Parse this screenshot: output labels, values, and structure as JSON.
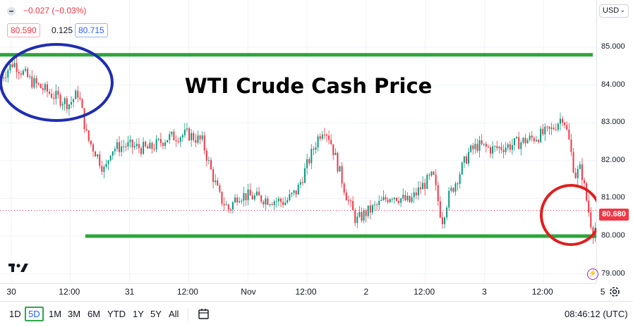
{
  "header": {
    "change": "−0.027 (−0.03%)",
    "bid": "80.590",
    "spread": "0.125",
    "ask": "80.715",
    "currency": "USD",
    "logo": "tradingview-logo"
  },
  "overlay": {
    "title": "WTI Crude Cash Price",
    "resistance_level": 84.8,
    "support_level": 80.0,
    "colors": {
      "lines": "#2ea43b",
      "left_ellipse": "#1f2db0",
      "right_circle": "#e01f1f"
    }
  },
  "chart_data": {
    "type": "candlestick",
    "title": "WTI Crude Cash Price",
    "x_ticks": [
      "30",
      "12:00",
      "31",
      "12:00",
      "Nov",
      "12:00",
      "2",
      "12:00",
      "3",
      "12:00",
      "5"
    ],
    "y_ticks": [
      "85.000",
      "84.000",
      "83.000",
      "82.000",
      "81.000",
      "80.000",
      "79.000"
    ],
    "ylim": [
      78.75,
      86.25
    ],
    "last_price": "80.680",
    "grid": true,
    "path": [
      {
        "x": 0.0,
        "y": 84.2
      },
      {
        "x": 0.2,
        "y": 84.6
      },
      {
        "x": 0.5,
        "y": 84.1
      },
      {
        "x": 0.9,
        "y": 83.7
      },
      {
        "x": 1.15,
        "y": 83.5
      },
      {
        "x": 1.3,
        "y": 83.8
      },
      {
        "x": 1.45,
        "y": 82.6
      },
      {
        "x": 1.6,
        "y": 82.2
      },
      {
        "x": 1.75,
        "y": 81.7
      },
      {
        "x": 1.85,
        "y": 82.3
      },
      {
        "x": 2.1,
        "y": 82.4
      },
      {
        "x": 2.5,
        "y": 82.3
      },
      {
        "x": 2.8,
        "y": 82.6
      },
      {
        "x": 3.15,
        "y": 82.7
      },
      {
        "x": 3.4,
        "y": 82.5
      },
      {
        "x": 3.55,
        "y": 81.7
      },
      {
        "x": 3.7,
        "y": 81.0
      },
      {
        "x": 3.85,
        "y": 80.7
      },
      {
        "x": 4.0,
        "y": 81.1
      },
      {
        "x": 4.4,
        "y": 81.0
      },
      {
        "x": 4.8,
        "y": 80.9
      },
      {
        "x": 5.0,
        "y": 81.2
      },
      {
        "x": 5.2,
        "y": 82.0
      },
      {
        "x": 5.35,
        "y": 82.6
      },
      {
        "x": 5.45,
        "y": 82.9
      },
      {
        "x": 5.55,
        "y": 82.6
      },
      {
        "x": 5.7,
        "y": 81.8
      },
      {
        "x": 5.85,
        "y": 81.0
      },
      {
        "x": 6.0,
        "y": 80.4
      },
      {
        "x": 6.15,
        "y": 80.6
      },
      {
        "x": 6.35,
        "y": 80.8
      },
      {
        "x": 6.6,
        "y": 81.1
      },
      {
        "x": 6.9,
        "y": 80.9
      },
      {
        "x": 7.1,
        "y": 81.3
      },
      {
        "x": 7.3,
        "y": 81.6
      },
      {
        "x": 7.45,
        "y": 80.4
      },
      {
        "x": 7.55,
        "y": 81.0
      },
      {
        "x": 7.7,
        "y": 81.5
      },
      {
        "x": 7.9,
        "y": 82.2
      },
      {
        "x": 8.05,
        "y": 82.4
      },
      {
        "x": 8.3,
        "y": 82.3
      },
      {
        "x": 8.6,
        "y": 82.4
      },
      {
        "x": 9.0,
        "y": 82.6
      },
      {
        "x": 9.3,
        "y": 82.8
      },
      {
        "x": 9.5,
        "y": 83.2
      },
      {
        "x": 9.6,
        "y": 82.5
      },
      {
        "x": 9.7,
        "y": 81.6
      },
      {
        "x": 9.8,
        "y": 81.8
      },
      {
        "x": 9.9,
        "y": 80.9
      },
      {
        "x": 10.0,
        "y": 80.1
      },
      {
        "x": 10.1,
        "y": 80.4
      },
      {
        "x": 10.2,
        "y": 80.9
      },
      {
        "x": 10.3,
        "y": 80.7
      }
    ]
  },
  "bottom_bar": {
    "ranges": [
      "1D",
      "5D",
      "1M",
      "3M",
      "6M",
      "YTD",
      "1Y",
      "5Y",
      "All"
    ],
    "active_range": "5D",
    "clock": "08:46:12 (UTC)"
  }
}
